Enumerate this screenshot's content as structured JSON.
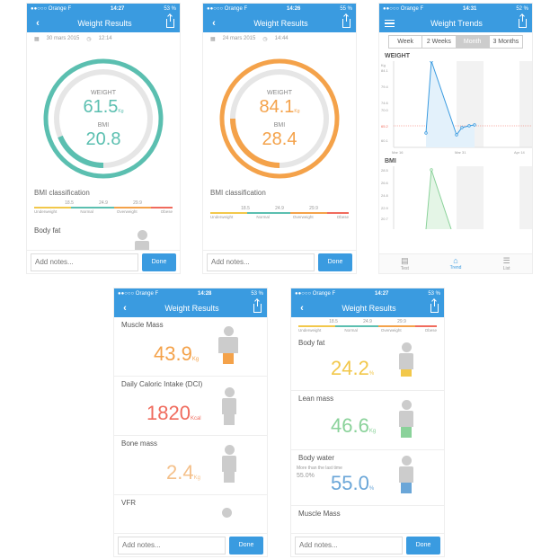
{
  "colors": {
    "accent": "#3a9be0",
    "teal": "#5bbfb0",
    "orange": "#f4a24a",
    "red": "#f06b5d",
    "yellow": "#f2c84b",
    "green": "#8ad29a",
    "grey": "#cccccc"
  },
  "screens": {
    "s1": {
      "status": {
        "carrier": "●●○○○ Orange F",
        "time": "14:27",
        "battery": "53 %"
      },
      "title": "Weight Results",
      "date": "30 mars 2015",
      "clock": "12:14",
      "weight_label": "WEIGHT",
      "weight": "61.5",
      "weight_unit": "Kg",
      "bmi_label": "BMI",
      "bmi": "20.8",
      "bmi_class_title": "BMI classification",
      "next_label": "Body fat",
      "notes_placeholder": "Add notes...",
      "done": "Done"
    },
    "s2": {
      "status": {
        "carrier": "●●○○○ Orange F",
        "time": "14:26",
        "battery": "55 %"
      },
      "title": "Weight Results",
      "date": "24 mars 2015",
      "clock": "14:44",
      "weight_label": "WEIGHT",
      "weight": "84.1",
      "weight_unit": "Kg",
      "bmi_label": "BMI",
      "bmi": "28.4",
      "bmi_class_title": "BMI classification",
      "notes_placeholder": "Add notes...",
      "done": "Done"
    },
    "s3": {
      "status": {
        "carrier": "●●○○○ Orange F",
        "time": "14:31",
        "battery": "52 %"
      },
      "title": "Weight Trends",
      "tabs": [
        "Week",
        "2 Weeks",
        "Month",
        "3 Months"
      ],
      "weight_title": "WEIGHT",
      "weight_unit": "Kg",
      "weight_ticks": [
        "84.1",
        "79.4",
        "74.6",
        "70.0",
        "65.2",
        "60.1"
      ],
      "x_ticks": [
        "Mar 16",
        "Mar 31",
        "Apr 14"
      ],
      "bmi_title": "BMI",
      "bmi_ticks": [
        "28.5",
        "26.6",
        "24.8",
        "22.9",
        "20.7"
      ],
      "tabbar": [
        "Test",
        "Trend",
        "List"
      ]
    },
    "s4": {
      "status": {
        "carrier": "●●○○○ Orange F",
        "time": "14:28",
        "battery": "53 %"
      },
      "title": "Weight Results",
      "rows": [
        {
          "label": "Muscle Mass",
          "value": "43.9",
          "unit": "Kg"
        },
        {
          "label": "Daily Caloric Intake (DCI)",
          "value": "1820",
          "unit": "Kcal"
        },
        {
          "label": "Bone mass",
          "value": "2.4",
          "unit": "Kg"
        },
        {
          "label": "VFR",
          "value": "",
          "unit": ""
        }
      ],
      "notes_placeholder": "Add notes...",
      "done": "Done"
    },
    "s5": {
      "status": {
        "carrier": "●●○○○ Orange F",
        "time": "14:27",
        "battery": "53 %"
      },
      "title": "Weight Results",
      "bmi_ticks": [
        "18.5",
        "24.9",
        "29.9"
      ],
      "bmi_names": [
        "Underweight",
        "Normal",
        "Overweight",
        "Obese"
      ],
      "rows": [
        {
          "label": "Body fat",
          "value": "24.2",
          "unit": "%"
        },
        {
          "label": "Lean mass",
          "value": "46.6",
          "unit": "Kg"
        },
        {
          "label": "Body water",
          "value": "55.0",
          "unit": "%",
          "note": "More than the last time",
          "prev": "55.0%"
        },
        {
          "label": "Muscle Mass",
          "value": "",
          "unit": ""
        }
      ],
      "notes_placeholder": "Add notes...",
      "done": "Done"
    }
  },
  "bmi_scale": {
    "ticks": [
      "18.5",
      "24.9",
      "29.9"
    ],
    "names": [
      "Underweight",
      "Normal",
      "Overweight",
      "Obese"
    ]
  }
}
